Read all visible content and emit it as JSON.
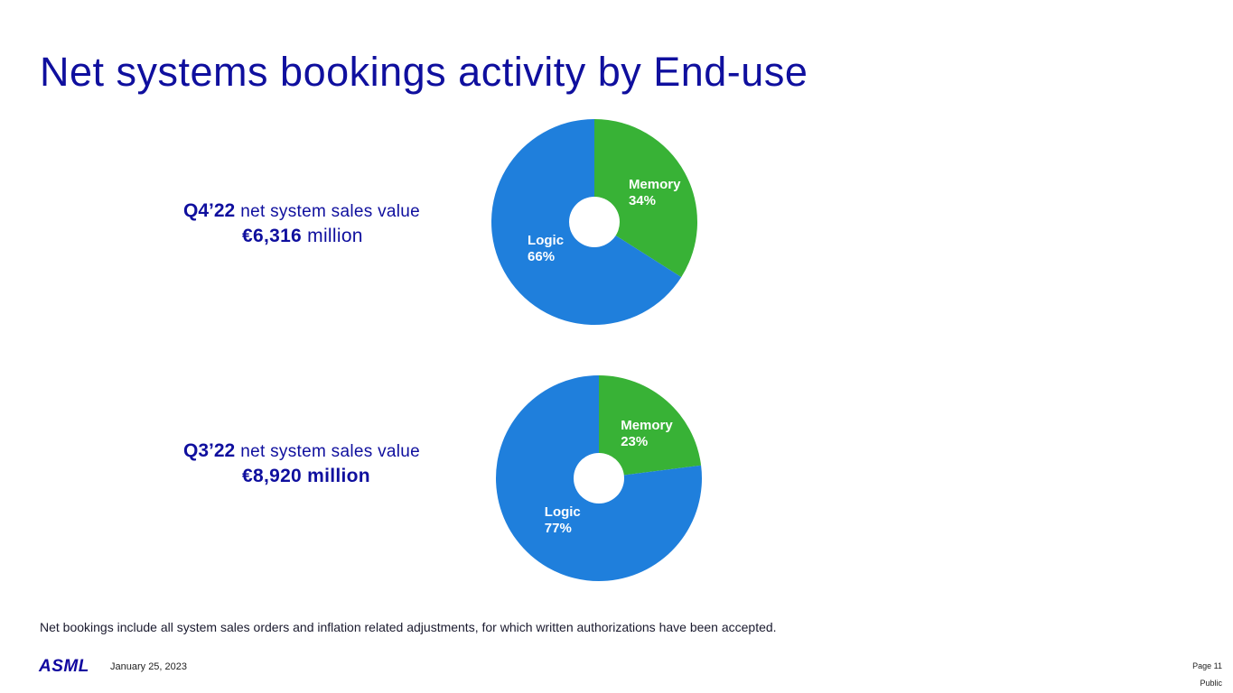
{
  "slide": {
    "title": "Net systems bookings activity by End-use",
    "footnote": "Net bookings include all system sales orders and inflation related adjustments, for which written authorizations have been accepted.",
    "logo": "ASML",
    "date": "January 25, 2023",
    "page": "Page 11",
    "classification": "Public"
  },
  "colors": {
    "memory": "#38b236",
    "logic": "#1f7fdc",
    "title": "#0f0f9e"
  },
  "chart_data": [
    {
      "type": "pie",
      "period_label": "Q4’22",
      "description": "net system sales value",
      "value_number": "€6,316",
      "value_unit": " million",
      "slices": [
        {
          "name": "Memory",
          "value": 34,
          "label": "34%"
        },
        {
          "name": "Logic",
          "value": 66,
          "label": "66%"
        }
      ]
    },
    {
      "type": "pie",
      "period_label": "Q3’22",
      "description": "net system sales value",
      "value_number": "€8,920",
      "value_unit": " million",
      "slices": [
        {
          "name": "Memory",
          "value": 23,
          "label": "23%"
        },
        {
          "name": "Logic",
          "value": 77,
          "label": "77%"
        }
      ]
    }
  ]
}
